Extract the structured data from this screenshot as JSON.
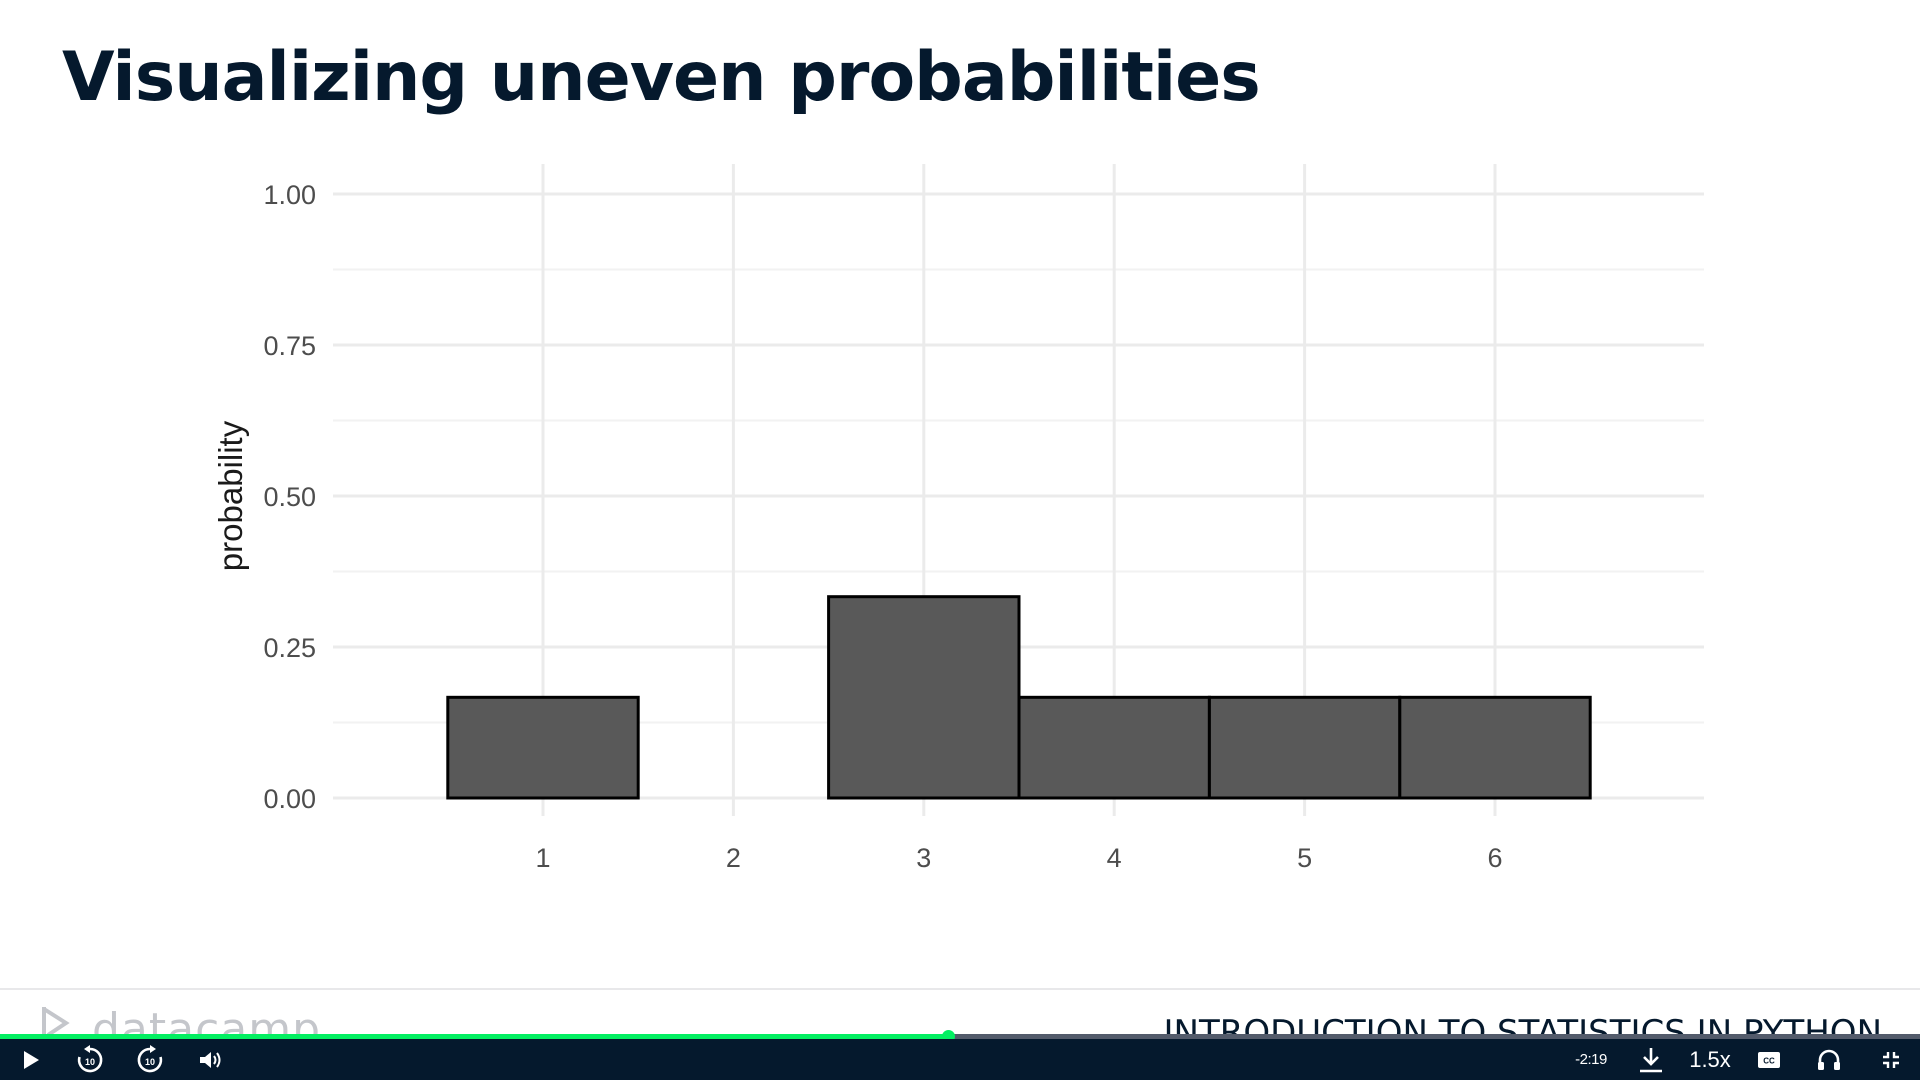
{
  "slide": {
    "title": "Visualizing uneven probabilities",
    "logo_text": "datacamp",
    "course_name": "INTRODUCTION TO STATISTICS IN PYTHON"
  },
  "chart_data": {
    "type": "bar",
    "categories": [
      "1",
      "2",
      "3",
      "4",
      "5",
      "6"
    ],
    "values": [
      0.1667,
      0,
      0.3333,
      0.1667,
      0.1667,
      0.1667
    ],
    "title": "",
    "xlabel": "",
    "ylabel": "probability",
    "ylim": [
      0,
      1
    ],
    "yticks": [
      "0.00",
      "0.25",
      "0.50",
      "0.75",
      "1.00"
    ],
    "grid": true,
    "bar_color": "#595959",
    "bar_edge_color": "#000000"
  },
  "player": {
    "progress_percent": 49.4,
    "time_remaining": "-2:19",
    "speed": "1.5x",
    "colors": {
      "bar": "#05192d",
      "progress": "#03ef62",
      "track": "#535b6b"
    },
    "icons": [
      "play-icon",
      "rewind-10-icon",
      "forward-10-icon",
      "volume-icon",
      "download-icon",
      "captions-icon",
      "headphones-icon",
      "exit-fullscreen-icon"
    ]
  }
}
